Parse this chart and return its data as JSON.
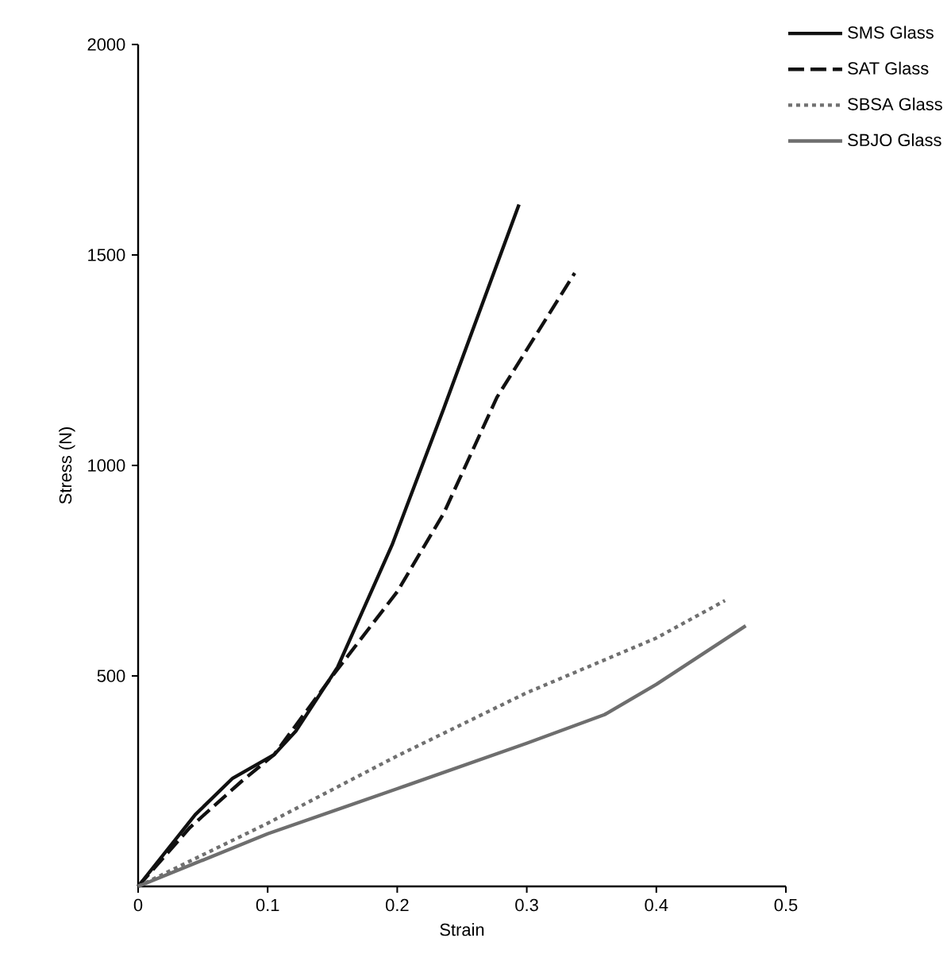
{
  "chart_data": {
    "type": "line",
    "xlabel": "Strain",
    "ylabel": "Stress (N)",
    "xlim": [
      0,
      0.5
    ],
    "ylim": [
      0,
      2000
    ],
    "xticks": [
      0,
      0.1,
      0.2,
      0.3,
      0.4,
      0.5
    ],
    "yticks": [
      500,
      1000,
      1500,
      2000
    ],
    "grid": false,
    "legend": "top right",
    "marker": "none",
    "series": [
      {
        "name": "SMS Glass",
        "color": "#111111",
        "line_style": "solid",
        "x": [
          0,
          0.044,
          0.073,
          0.105,
          0.122,
          0.154,
          0.196,
          0.236,
          0.294
        ],
        "values": [
          0,
          170,
          257,
          313,
          370,
          521,
          811,
          1136,
          1620
        ]
      },
      {
        "name": "SAT Glass",
        "color": "#111111",
        "line_style": "dashed",
        "x": [
          0,
          0.04,
          0.08,
          0.105,
          0.15,
          0.2,
          0.236,
          0.277,
          0.337
        ],
        "values": [
          0,
          140,
          250,
          313,
          500,
          700,
          887,
          1162,
          1457
        ]
      },
      {
        "name": "SBSA Glass",
        "color": "#707070",
        "line_style": "dotted",
        "x": [
          0,
          0.1,
          0.2,
          0.3,
          0.4,
          0.453
        ],
        "values": [
          0,
          150,
          310,
          460,
          590,
          679
        ]
      },
      {
        "name": "SBJO Glass",
        "color": "#6e6e6e",
        "line_style": "solid",
        "x": [
          0,
          0.1,
          0.2,
          0.3,
          0.36,
          0.4,
          0.469
        ],
        "values": [
          0,
          125,
          232,
          340,
          408,
          480,
          619
        ]
      }
    ]
  }
}
